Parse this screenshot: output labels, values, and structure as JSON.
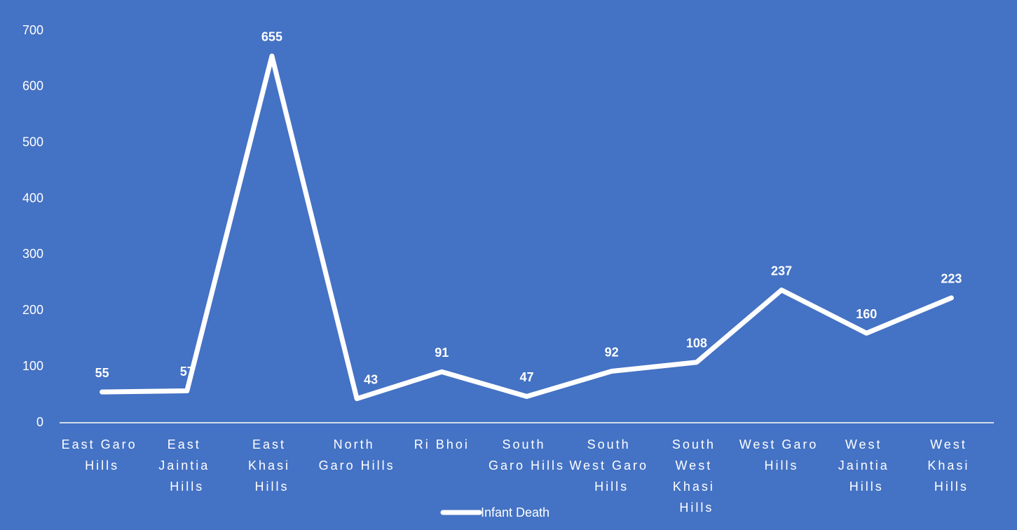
{
  "chart_data": {
    "type": "line",
    "categories": [
      "East Garo Hills",
      "East Jaintia Hills",
      "East Khasi Hills",
      "North Garo Hills",
      "Ri Bhoi",
      "South Garo Hills",
      "South West Garo Hills",
      "South West Khasi Hills",
      "West Garo Hills",
      "West Jaintia Hills",
      "West Khasi Hills"
    ],
    "series": [
      {
        "name": "Infant Death",
        "color": "#ffffff",
        "values": [
          55,
          57,
          655,
          43,
          91,
          47,
          92,
          108,
          237,
          160,
          223
        ]
      }
    ],
    "ylim": [
      0,
      700
    ],
    "yticks": [
      0,
      100,
      200,
      300,
      400,
      500,
      600,
      700
    ],
    "legend": "bottom",
    "data_labels": true,
    "drop_lines": true
  }
}
